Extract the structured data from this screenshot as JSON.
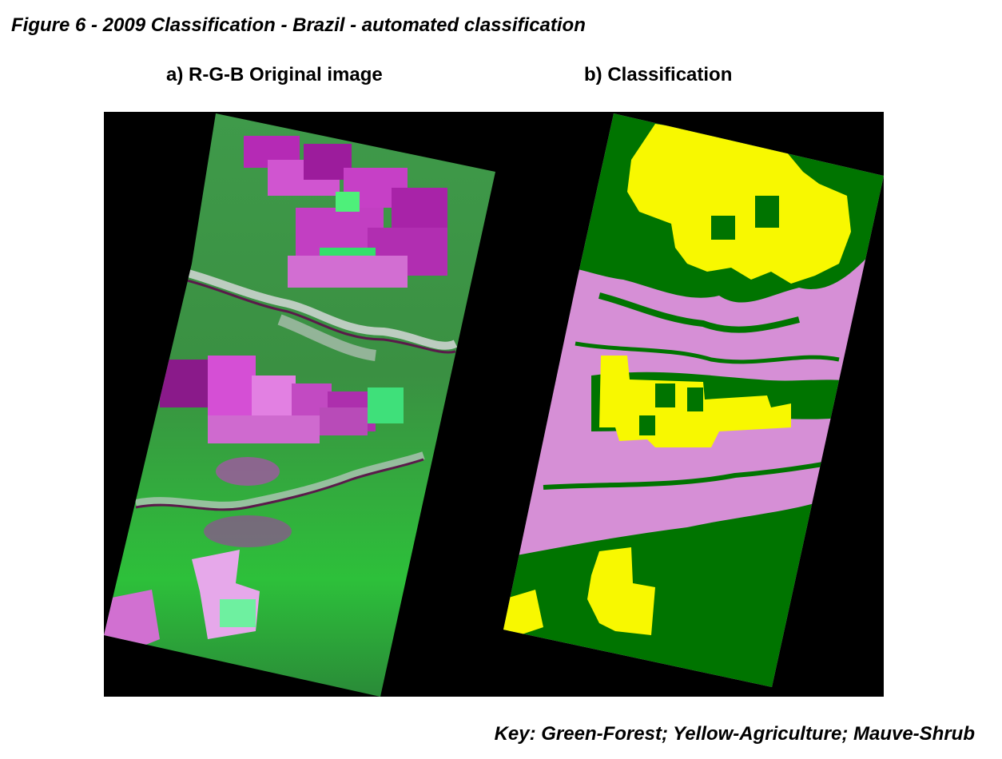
{
  "figure": {
    "title": "Figure 6 - 2009 Classification - Brazil - automated classification"
  },
  "panels": [
    {
      "caption": "a) R-G-B Original image"
    },
    {
      "caption": "b) Classification"
    }
  ],
  "key": {
    "text": "Key: Green-Forest; Yellow-Agriculture; Mauve-Shrub"
  },
  "colors": {
    "background": "#000000",
    "forest": "#007400",
    "agriculture": "#f8f800",
    "shrub": "#d68fd6",
    "rgb_green": "#22c43a",
    "rgb_magenta": "#c020c0"
  }
}
